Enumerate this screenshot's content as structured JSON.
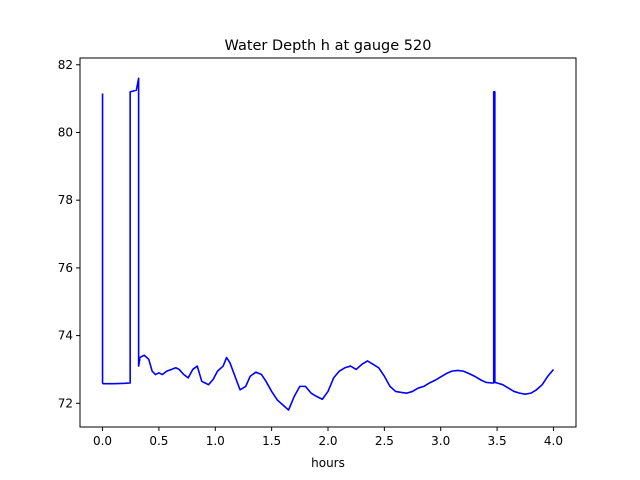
{
  "chart_data": {
    "type": "line",
    "title": "Water Depth h at gauge 520",
    "xlabel": "hours",
    "ylabel": "",
    "xlim": [
      -0.2,
      4.2
    ],
    "ylim": [
      71.3,
      82.2
    ],
    "xticks": [
      "0.0",
      "0.5",
      "1.0",
      "1.5",
      "2.0",
      "2.5",
      "3.0",
      "3.5",
      "4.0"
    ],
    "xtick_values": [
      0,
      0.5,
      1.0,
      1.5,
      2.0,
      2.5,
      3.0,
      3.5,
      4.0
    ],
    "yticks": [
      "72",
      "74",
      "76",
      "78",
      "80",
      "82"
    ],
    "ytick_values": [
      72,
      74,
      76,
      78,
      80,
      82
    ],
    "grid": false,
    "color": "#0000ff",
    "series": [
      {
        "x": [
          0.0,
          0.0,
          0.005,
          0.1,
          0.2,
          0.24,
          0.245,
          0.245,
          0.3,
          0.32,
          0.32,
          0.33,
          0.33,
          0.37,
          0.41,
          0.44,
          0.47,
          0.5,
          0.53,
          0.57,
          0.61,
          0.65,
          0.68,
          0.72,
          0.76,
          0.8,
          0.84,
          0.88,
          0.91,
          0.94,
          0.98,
          1.02,
          1.07,
          1.1,
          1.13,
          1.18,
          1.22,
          1.27,
          1.31,
          1.36,
          1.41,
          1.45,
          1.5,
          1.55,
          1.6,
          1.65,
          1.7,
          1.75,
          1.8,
          1.85,
          1.9,
          1.95,
          2.0,
          2.05,
          2.1,
          2.15,
          2.2,
          2.25,
          2.3,
          2.35,
          2.4,
          2.45,
          2.5,
          2.55,
          2.6,
          2.65,
          2.7,
          2.75,
          2.8,
          2.85,
          2.9,
          2.95,
          3.0,
          3.05,
          3.1,
          3.15,
          3.2,
          3.25,
          3.3,
          3.35,
          3.4,
          3.45,
          3.47,
          3.47,
          3.48,
          3.48,
          3.5,
          3.55,
          3.6,
          3.65,
          3.7,
          3.75,
          3.8,
          3.85,
          3.9,
          3.95,
          4.0
        ],
        "y": [
          81.15,
          72.6,
          72.58,
          72.58,
          72.59,
          72.6,
          72.6,
          81.2,
          81.25,
          81.6,
          73.1,
          73.3,
          73.35,
          73.42,
          73.3,
          72.95,
          72.85,
          72.9,
          72.85,
          72.95,
          73.0,
          73.05,
          73.0,
          72.85,
          72.75,
          73.0,
          73.1,
          72.65,
          72.6,
          72.55,
          72.7,
          72.95,
          73.1,
          73.35,
          73.2,
          72.75,
          72.4,
          72.5,
          72.8,
          72.92,
          72.85,
          72.65,
          72.35,
          72.1,
          71.95,
          71.8,
          72.2,
          72.5,
          72.5,
          72.3,
          72.2,
          72.12,
          72.35,
          72.75,
          72.95,
          73.05,
          73.1,
          73.0,
          73.15,
          73.25,
          73.15,
          73.05,
          72.8,
          72.5,
          72.35,
          72.32,
          72.3,
          72.35,
          72.45,
          72.5,
          72.6,
          72.68,
          72.78,
          72.88,
          72.95,
          72.97,
          72.95,
          72.88,
          72.8,
          72.7,
          72.62,
          72.6,
          72.6,
          81.2,
          81.2,
          72.62,
          72.6,
          72.55,
          72.45,
          72.35,
          72.3,
          72.27,
          72.3,
          72.4,
          72.55,
          72.8,
          73.0
        ]
      }
    ]
  }
}
